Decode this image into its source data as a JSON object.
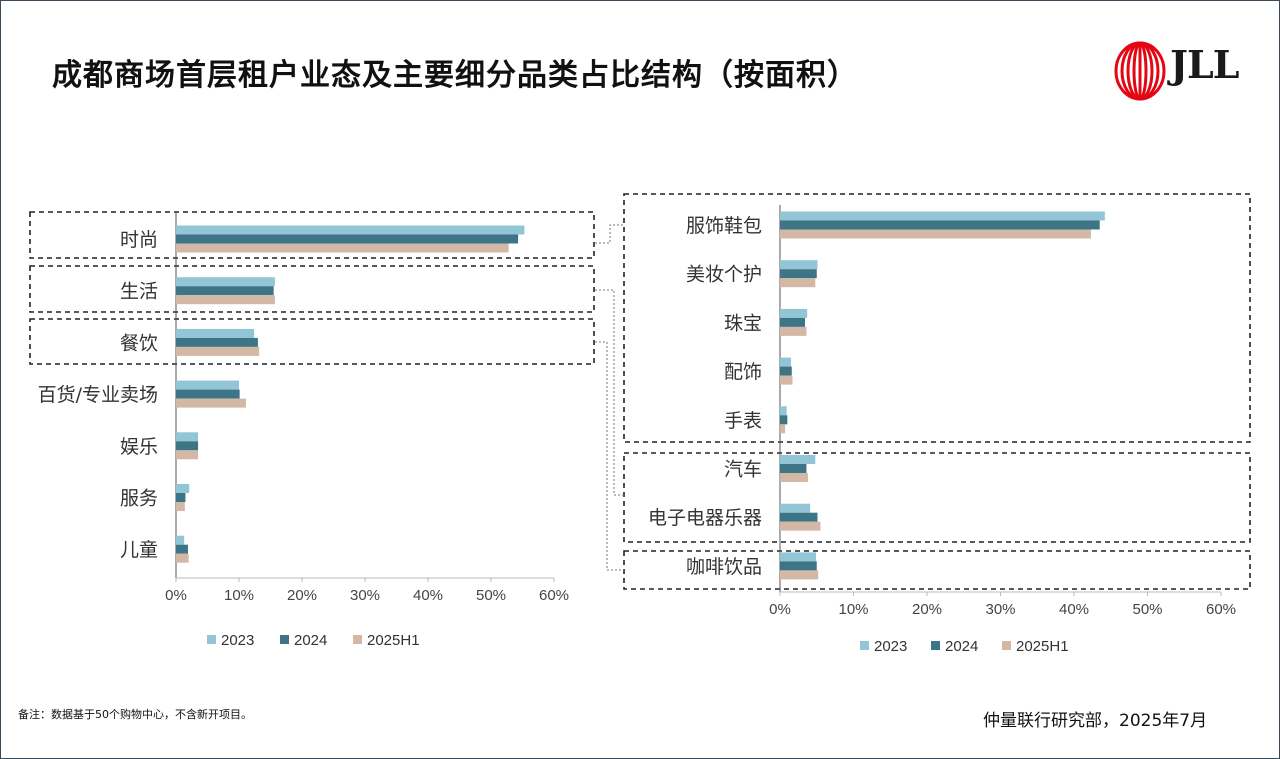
{
  "title": "成都商场首层租户业态及主要细分品类占比结构（按面积）",
  "logo_text": "JLL",
  "note": "备注：数据基于50个购物中心，不含新开项目。",
  "source": "仲量联行研究部，2025年7月",
  "colors": {
    "2023": "#92c5d6",
    "2024": "#3d7486",
    "2025H1": "#d4b8a6"
  },
  "chart_data": [
    {
      "type": "bar",
      "orientation": "horizontal",
      "categories": [
        "时尚",
        "生活",
        "餐饮",
        "百货/专业卖场",
        "娱乐",
        "服务",
        "儿童"
      ],
      "series": [
        {
          "name": "2023",
          "values": [
            55.3,
            15.7,
            12.4,
            10.0,
            3.5,
            2.1,
            1.3
          ]
        },
        {
          "name": "2024",
          "values": [
            54.3,
            15.5,
            13.0,
            10.1,
            3.5,
            1.5,
            1.9
          ]
        },
        {
          "name": "2025H1",
          "values": [
            52.8,
            15.7,
            13.2,
            11.1,
            3.5,
            1.4,
            2.0
          ]
        }
      ],
      "xticks": [
        "0%",
        "10%",
        "20%",
        "30%",
        "40%",
        "50%",
        "60%"
      ],
      "xlim": [
        0,
        60
      ],
      "legend": "bottom"
    },
    {
      "type": "bar",
      "orientation": "horizontal",
      "categories": [
        "服饰鞋包",
        "美妆个护",
        "珠宝",
        "配饰",
        "手表",
        "汽车",
        "电子电器乐器",
        "咖啡饮品"
      ],
      "series": [
        {
          "name": "2023",
          "values": [
            44.2,
            5.1,
            3.7,
            1.5,
            0.9,
            4.8,
            4.1,
            4.9
          ]
        },
        {
          "name": "2024",
          "values": [
            43.5,
            5.0,
            3.4,
            1.6,
            1.0,
            3.6,
            5.1,
            5.0
          ]
        },
        {
          "name": "2025H1",
          "values": [
            42.3,
            4.8,
            3.6,
            1.7,
            0.7,
            3.8,
            5.5,
            5.2
          ]
        }
      ],
      "xticks": [
        "0%",
        "10%",
        "20%",
        "30%",
        "40%",
        "50%",
        "60%"
      ],
      "xlim": [
        0,
        60
      ],
      "legend": "bottom"
    }
  ]
}
